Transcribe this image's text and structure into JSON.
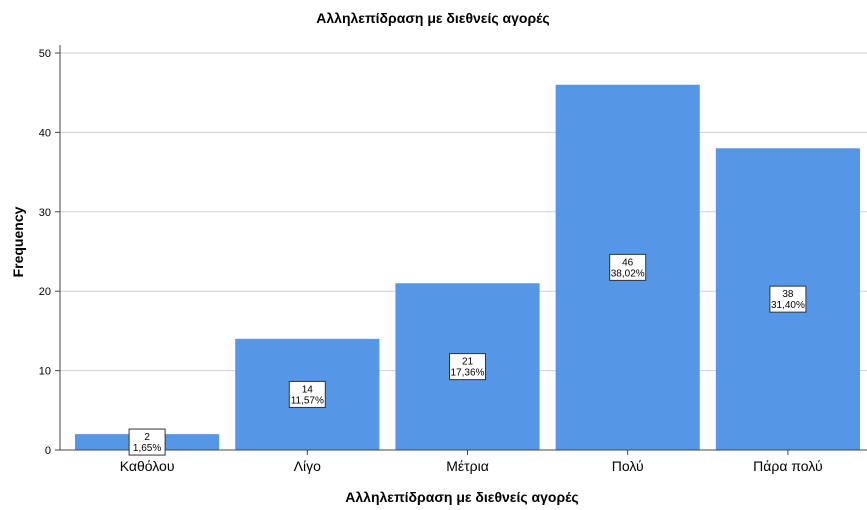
{
  "chart_data": {
    "type": "bar",
    "title": "Αλληλεπίδραση με διεθνείς αγορές",
    "xlabel": "Αλληλεπίδραση με διεθνείς αγορές",
    "ylabel": "Frequency",
    "categories": [
      "Καθόλου",
      "Λίγο",
      "Μέτρια",
      "Πολύ",
      "Πάρα πολύ"
    ],
    "values": [
      2,
      14,
      21,
      46,
      38
    ],
    "percent_labels": [
      "1,65%",
      "11,57%",
      "17,36%",
      "38,02%",
      "31,40%"
    ],
    "count_labels": [
      "2",
      "14",
      "21",
      "46",
      "38"
    ],
    "ylim": [
      0,
      50
    ],
    "yticks": [
      0,
      10,
      20,
      30,
      40,
      50
    ],
    "ytick_labels": [
      "0",
      "10",
      "20",
      "30",
      "40",
      "50"
    ],
    "grid": true,
    "colors": {
      "bar": "#5596e6",
      "grid": "#cfcfcf",
      "axis": "#444444",
      "label_box": "#ffffff"
    }
  }
}
